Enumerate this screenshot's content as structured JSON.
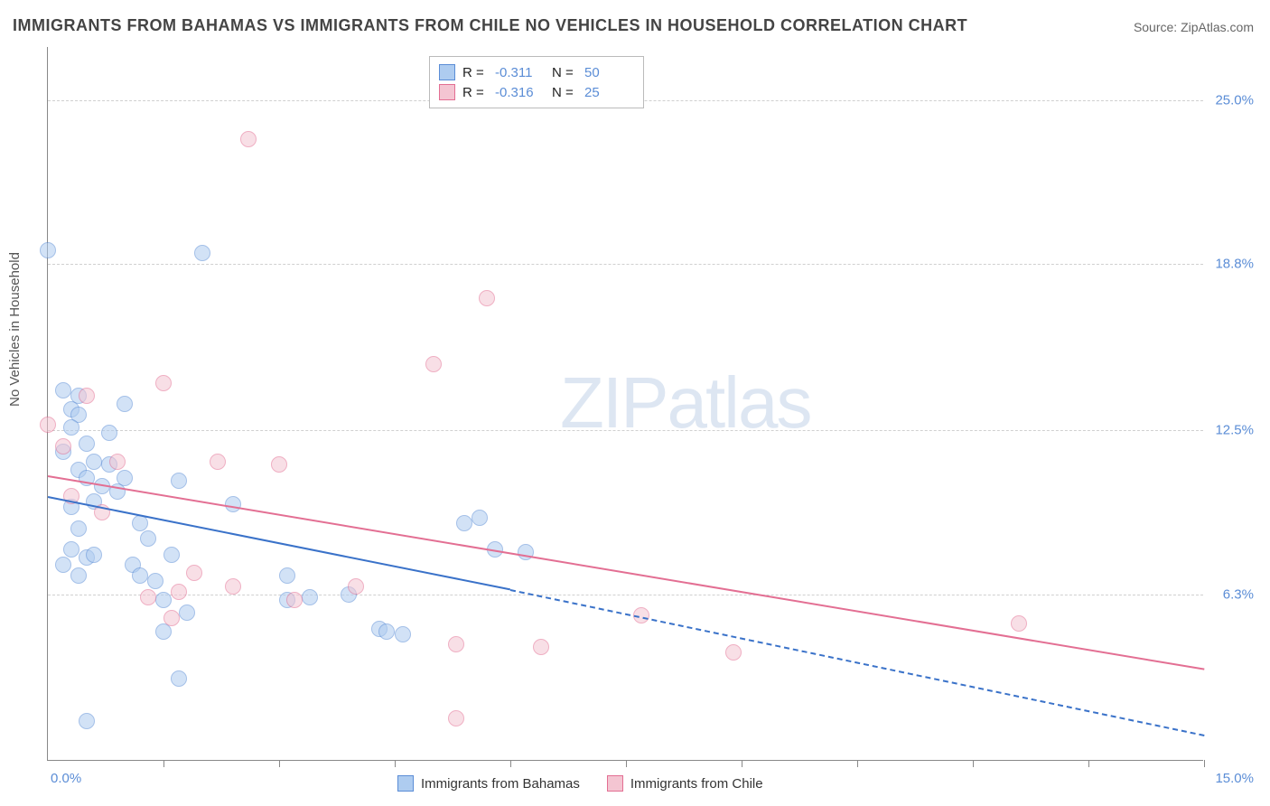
{
  "title": "IMMIGRANTS FROM BAHAMAS VS IMMIGRANTS FROM CHILE NO VEHICLES IN HOUSEHOLD CORRELATION CHART",
  "source": "Source: ZipAtlas.com",
  "ylabel": "No Vehicles in Household",
  "watermark_a": "ZIP",
  "watermark_b": "atlas",
  "chart": {
    "type": "scatter",
    "xlim": [
      0,
      15
    ],
    "ylim": [
      0,
      27
    ],
    "x_tick_labels": {
      "left": "0.0%",
      "right": "15.0%"
    },
    "x_tick_positions": [
      1.5,
      3.0,
      4.5,
      6.0,
      7.5,
      9.0,
      10.5,
      12.0,
      13.5,
      15.0
    ],
    "y_gridlines": [
      6.3,
      12.5,
      18.8,
      25.0
    ],
    "y_tick_labels": [
      "6.3%",
      "12.5%",
      "18.8%",
      "25.0%"
    ],
    "background_color": "#ffffff",
    "grid_color": "#d0d0d0",
    "axis_color": "#888888",
    "point_radius": 9,
    "point_opacity": 0.55,
    "series": [
      {
        "name": "Immigrants from Bahamas",
        "color_fill": "#aeccf0",
        "color_stroke": "#5b8dd6",
        "r": -0.311,
        "n": 50,
        "trend": {
          "x1": 0,
          "y1": 10.0,
          "x2": 6.0,
          "y2": 6.5,
          "dash_to_x": 15,
          "dash_to_y": 1.0,
          "color": "#3a72c9",
          "width": 2
        },
        "points": [
          [
            0.0,
            19.3
          ],
          [
            0.2,
            14.0
          ],
          [
            0.3,
            13.3
          ],
          [
            0.4,
            13.1
          ],
          [
            0.3,
            12.6
          ],
          [
            0.5,
            12.0
          ],
          [
            0.4,
            11.0
          ],
          [
            0.6,
            11.3
          ],
          [
            0.7,
            10.4
          ],
          [
            0.4,
            13.8
          ],
          [
            0.2,
            11.7
          ],
          [
            0.5,
            10.7
          ],
          [
            0.3,
            9.6
          ],
          [
            0.6,
            9.8
          ],
          [
            0.4,
            8.8
          ],
          [
            0.3,
            8.0
          ],
          [
            0.5,
            7.7
          ],
          [
            0.4,
            7.0
          ],
          [
            0.2,
            7.4
          ],
          [
            0.6,
            7.8
          ],
          [
            0.8,
            11.2
          ],
          [
            0.9,
            10.2
          ],
          [
            1.0,
            10.7
          ],
          [
            1.0,
            13.5
          ],
          [
            1.1,
            7.4
          ],
          [
            1.2,
            7.0
          ],
          [
            1.2,
            9.0
          ],
          [
            1.3,
            8.4
          ],
          [
            1.4,
            6.8
          ],
          [
            1.5,
            6.1
          ],
          [
            1.5,
            4.9
          ],
          [
            1.6,
            7.8
          ],
          [
            1.7,
            10.6
          ],
          [
            1.7,
            3.1
          ],
          [
            1.8,
            5.6
          ],
          [
            2.0,
            19.2
          ],
          [
            2.4,
            9.7
          ],
          [
            3.1,
            7.0
          ],
          [
            3.1,
            6.1
          ],
          [
            3.4,
            6.2
          ],
          [
            3.9,
            6.3
          ],
          [
            4.3,
            5.0
          ],
          [
            4.4,
            4.9
          ],
          [
            4.6,
            4.8
          ],
          [
            5.4,
            9.0
          ],
          [
            5.6,
            9.2
          ],
          [
            5.8,
            8.0
          ],
          [
            6.2,
            7.9
          ],
          [
            0.8,
            12.4
          ],
          [
            0.5,
            1.5
          ]
        ]
      },
      {
        "name": "Immigrants from Chile",
        "color_fill": "#f4c5d2",
        "color_stroke": "#e36f93",
        "r": -0.316,
        "n": 25,
        "trend": {
          "x1": 0,
          "y1": 10.8,
          "x2": 15,
          "y2": 3.5,
          "color": "#e36f93",
          "width": 2
        },
        "points": [
          [
            0.0,
            12.7
          ],
          [
            0.3,
            10.0
          ],
          [
            0.5,
            13.8
          ],
          [
            0.7,
            9.4
          ],
          [
            0.9,
            11.3
          ],
          [
            1.3,
            6.2
          ],
          [
            1.5,
            14.3
          ],
          [
            1.6,
            5.4
          ],
          [
            1.7,
            6.4
          ],
          [
            1.9,
            7.1
          ],
          [
            2.2,
            11.3
          ],
          [
            2.4,
            6.6
          ],
          [
            2.6,
            23.5
          ],
          [
            3.0,
            11.2
          ],
          [
            3.2,
            6.1
          ],
          [
            4.0,
            6.6
          ],
          [
            5.0,
            15.0
          ],
          [
            5.3,
            1.6
          ],
          [
            5.3,
            4.4
          ],
          [
            5.7,
            17.5
          ],
          [
            6.4,
            4.3
          ],
          [
            7.7,
            5.5
          ],
          [
            8.9,
            4.1
          ],
          [
            12.6,
            5.2
          ],
          [
            0.2,
            11.9
          ]
        ]
      }
    ],
    "stats_box": {
      "r_label": "R =",
      "n_label": "N ="
    }
  }
}
